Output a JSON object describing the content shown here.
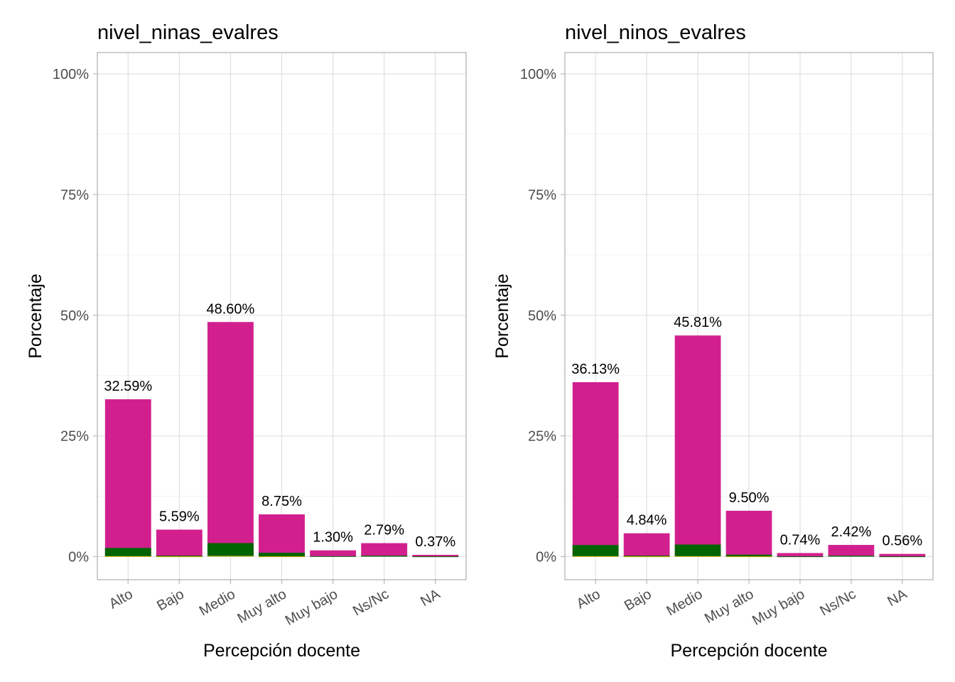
{
  "chart_data": [
    {
      "type": "bar",
      "title": "nivel_ninas_evalres",
      "xlabel": "Percepción docente",
      "ylabel": "Porcentaje",
      "ylim": [
        0,
        100
      ],
      "yticks": [
        "0%",
        "25%",
        "50%",
        "75%",
        "100%"
      ],
      "categories": [
        "Alto",
        "Bajo",
        "Medio",
        "Muy alto",
        "Muy bajo",
        "Ns/Nc",
        "NA"
      ],
      "series": [
        {
          "name": "magenta",
          "color": "#d1208e",
          "values": [
            32.59,
            5.59,
            48.6,
            8.75,
            1.3,
            2.79,
            0.37
          ]
        },
        {
          "name": "green",
          "color": "#006400",
          "values": [
            1.8,
            0.2,
            2.8,
            0.8,
            0.1,
            0.2,
            0.05
          ]
        },
        {
          "name": "yellow",
          "color": "#d4b400",
          "values": [
            0.1,
            0.05,
            0.15,
            0.05,
            0,
            0,
            0
          ]
        }
      ],
      "labels": [
        "32.59%",
        "5.59%",
        "48.60%",
        "8.75%",
        "1.30%",
        "2.79%",
        "0.37%"
      ]
    },
    {
      "type": "bar",
      "title": "nivel_ninos_evalres",
      "xlabel": "Percepción docente",
      "ylabel": "Porcentaje",
      "ylim": [
        0,
        100
      ],
      "yticks": [
        "0%",
        "25%",
        "50%",
        "75%",
        "100%"
      ],
      "categories": [
        "Alto",
        "Bajo",
        "Medio",
        "Muy alto",
        "Muy bajo",
        "Ns/Nc",
        "NA"
      ],
      "series": [
        {
          "name": "magenta",
          "color": "#d1208e",
          "values": [
            36.13,
            4.84,
            45.81,
            9.5,
            0.74,
            2.42,
            0.56
          ]
        },
        {
          "name": "green",
          "color": "#006400",
          "values": [
            2.4,
            0.2,
            2.5,
            0.4,
            0.05,
            0.2,
            0.05
          ]
        },
        {
          "name": "yellow",
          "color": "#d4b400",
          "values": [
            0.1,
            0.05,
            0.1,
            0.05,
            0,
            0,
            0
          ]
        }
      ],
      "labels": [
        "36.13%",
        "4.84%",
        "45.81%",
        "9.50%",
        "0.74%",
        "2.42%",
        "0.56%"
      ]
    }
  ]
}
